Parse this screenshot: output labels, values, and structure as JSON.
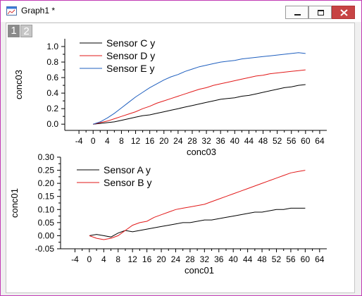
{
  "window": {
    "title": "Graph1 *",
    "icons": [
      "graph-window-icon",
      "minimize-icon",
      "restore-icon",
      "close-icon"
    ]
  },
  "layer_tabs": [
    "1",
    "2"
  ],
  "colors": {
    "sensor_a": "#000000",
    "sensor_b": "#e21a1a",
    "sensor_c": "#000000",
    "sensor_d": "#e21a1a",
    "sensor_e": "#1f5fbf",
    "close_button": "#c74444"
  },
  "chart_data": [
    {
      "type": "line",
      "xlabel": "conc03",
      "ylabel": "conc03",
      "xlim": [
        -8,
        66
      ],
      "ylim": [
        -0.08,
        1.1
      ],
      "xticks": [
        -4,
        0,
        4,
        8,
        12,
        16,
        20,
        24,
        28,
        32,
        36,
        40,
        44,
        48,
        52,
        56,
        60,
        64
      ],
      "yticks": [
        0.0,
        0.2,
        0.4,
        0.6,
        0.8,
        1.0
      ],
      "ytick_labels": [
        "0.0",
        "0.2",
        "0.4",
        "0.6",
        "0.8",
        "1.0"
      ],
      "legend_position": "top-left",
      "x": [
        0,
        2,
        4,
        6,
        8,
        10,
        12,
        14,
        16,
        18,
        20,
        22,
        24,
        26,
        28,
        30,
        32,
        34,
        36,
        38,
        40,
        42,
        44,
        46,
        48,
        50,
        52,
        54,
        56,
        58,
        60
      ],
      "series": [
        {
          "name": "Sensor C y",
          "color": "#000000",
          "values": [
            0.0,
            0.01,
            0.02,
            0.03,
            0.05,
            0.07,
            0.09,
            0.11,
            0.12,
            0.14,
            0.16,
            0.18,
            0.2,
            0.22,
            0.24,
            0.26,
            0.28,
            0.3,
            0.32,
            0.33,
            0.34,
            0.36,
            0.37,
            0.39,
            0.41,
            0.43,
            0.45,
            0.47,
            0.48,
            0.5,
            0.51
          ]
        },
        {
          "name": "Sensor D y",
          "color": "#e21a1a",
          "values": [
            0.0,
            0.02,
            0.04,
            0.07,
            0.1,
            0.13,
            0.16,
            0.2,
            0.23,
            0.27,
            0.3,
            0.33,
            0.36,
            0.39,
            0.42,
            0.45,
            0.47,
            0.5,
            0.52,
            0.54,
            0.56,
            0.58,
            0.6,
            0.62,
            0.63,
            0.65,
            0.66,
            0.67,
            0.68,
            0.69,
            0.7
          ]
        },
        {
          "name": "Sensor E y",
          "color": "#1f5fbf",
          "values": [
            0.0,
            0.03,
            0.08,
            0.14,
            0.21,
            0.28,
            0.35,
            0.41,
            0.47,
            0.52,
            0.57,
            0.61,
            0.64,
            0.68,
            0.71,
            0.74,
            0.76,
            0.78,
            0.8,
            0.81,
            0.82,
            0.84,
            0.85,
            0.86,
            0.87,
            0.88,
            0.89,
            0.9,
            0.91,
            0.92,
            0.91
          ]
        }
      ]
    },
    {
      "type": "line",
      "xlabel": "conc01",
      "ylabel": "conc01",
      "xlim": [
        -8,
        66
      ],
      "ylim": [
        -0.05,
        0.3
      ],
      "xticks": [
        -4,
        0,
        4,
        8,
        12,
        16,
        20,
        24,
        28,
        32,
        36,
        40,
        44,
        48,
        52,
        56,
        60,
        64
      ],
      "yticks": [
        -0.05,
        0.0,
        0.05,
        0.1,
        0.15,
        0.2,
        0.25,
        0.3
      ],
      "ytick_labels": [
        "-0.05",
        "0.00",
        "0.05",
        "0.10",
        "0.15",
        "0.20",
        "0.25",
        "0.30"
      ],
      "legend_position": "top-left",
      "x": [
        0,
        2,
        4,
        6,
        8,
        10,
        12,
        14,
        16,
        18,
        20,
        22,
        24,
        26,
        28,
        30,
        32,
        34,
        36,
        38,
        40,
        42,
        44,
        46,
        48,
        50,
        52,
        54,
        56,
        58,
        60
      ],
      "series": [
        {
          "name": "Sensor A y",
          "color": "#000000",
          "values": [
            0.0,
            0.005,
            0.0,
            -0.005,
            0.01,
            0.02,
            0.015,
            0.02,
            0.025,
            0.03,
            0.035,
            0.04,
            0.045,
            0.05,
            0.05,
            0.055,
            0.06,
            0.06,
            0.065,
            0.07,
            0.075,
            0.08,
            0.085,
            0.09,
            0.09,
            0.095,
            0.1,
            0.1,
            0.105,
            0.105,
            0.105
          ]
        },
        {
          "name": "Sensor B y",
          "color": "#e21a1a",
          "values": [
            0.0,
            -0.01,
            -0.015,
            -0.01,
            0.0,
            0.02,
            0.04,
            0.05,
            0.055,
            0.07,
            0.08,
            0.09,
            0.1,
            0.105,
            0.11,
            0.115,
            0.12,
            0.13,
            0.14,
            0.15,
            0.16,
            0.17,
            0.18,
            0.19,
            0.2,
            0.21,
            0.22,
            0.23,
            0.24,
            0.245,
            0.25
          ]
        }
      ]
    }
  ]
}
